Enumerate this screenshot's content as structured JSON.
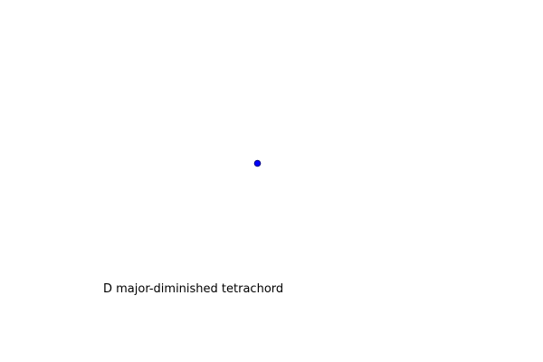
{
  "caption": "D major-diminished tetrachord",
  "marker": {
    "shape": "circle",
    "fill_color": "#0000ff",
    "edge_color": "#000080"
  },
  "background_color": "#ffffff"
}
